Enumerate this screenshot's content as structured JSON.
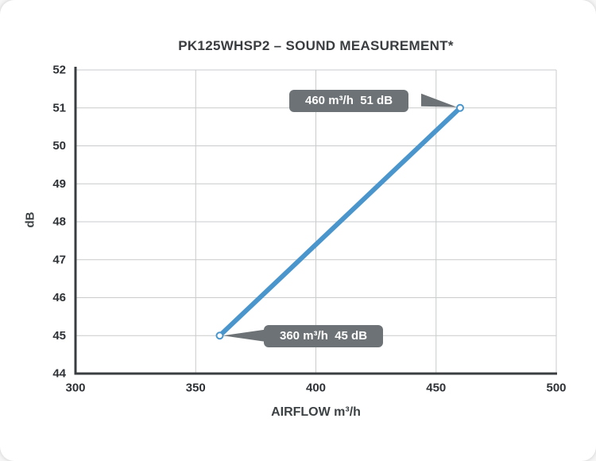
{
  "title": "PK125WHSP2 – SOUND MEASUREMENT*",
  "colors": {
    "line": "#4a96cc",
    "grid": "#c9cbcc",
    "axis": "#3a3e41",
    "callout_bg": "#6c7275",
    "callout_text": "#ffffff"
  },
  "chart_data": {
    "type": "line",
    "title": "PK125WHSP2 – SOUND MEASUREMENT*",
    "xlabel": "AIRFLOW m³/h",
    "ylabel": "dB",
    "xlim": [
      300,
      500
    ],
    "ylim": [
      44,
      52
    ],
    "x_ticks": [
      300,
      350,
      400,
      450,
      500
    ],
    "y_ticks": [
      44,
      45,
      46,
      47,
      48,
      49,
      50,
      51,
      52
    ],
    "grid": true,
    "legend": "none",
    "series": [
      {
        "name": "sound level",
        "x": [
          360,
          460
        ],
        "y": [
          45,
          51
        ]
      }
    ],
    "annotations": [
      {
        "label": "460 m³/h  51 dB",
        "x": 460,
        "y": 51,
        "side": "left"
      },
      {
        "label": "360 m³/h  45 dB",
        "x": 360,
        "y": 45,
        "side": "right"
      }
    ]
  }
}
